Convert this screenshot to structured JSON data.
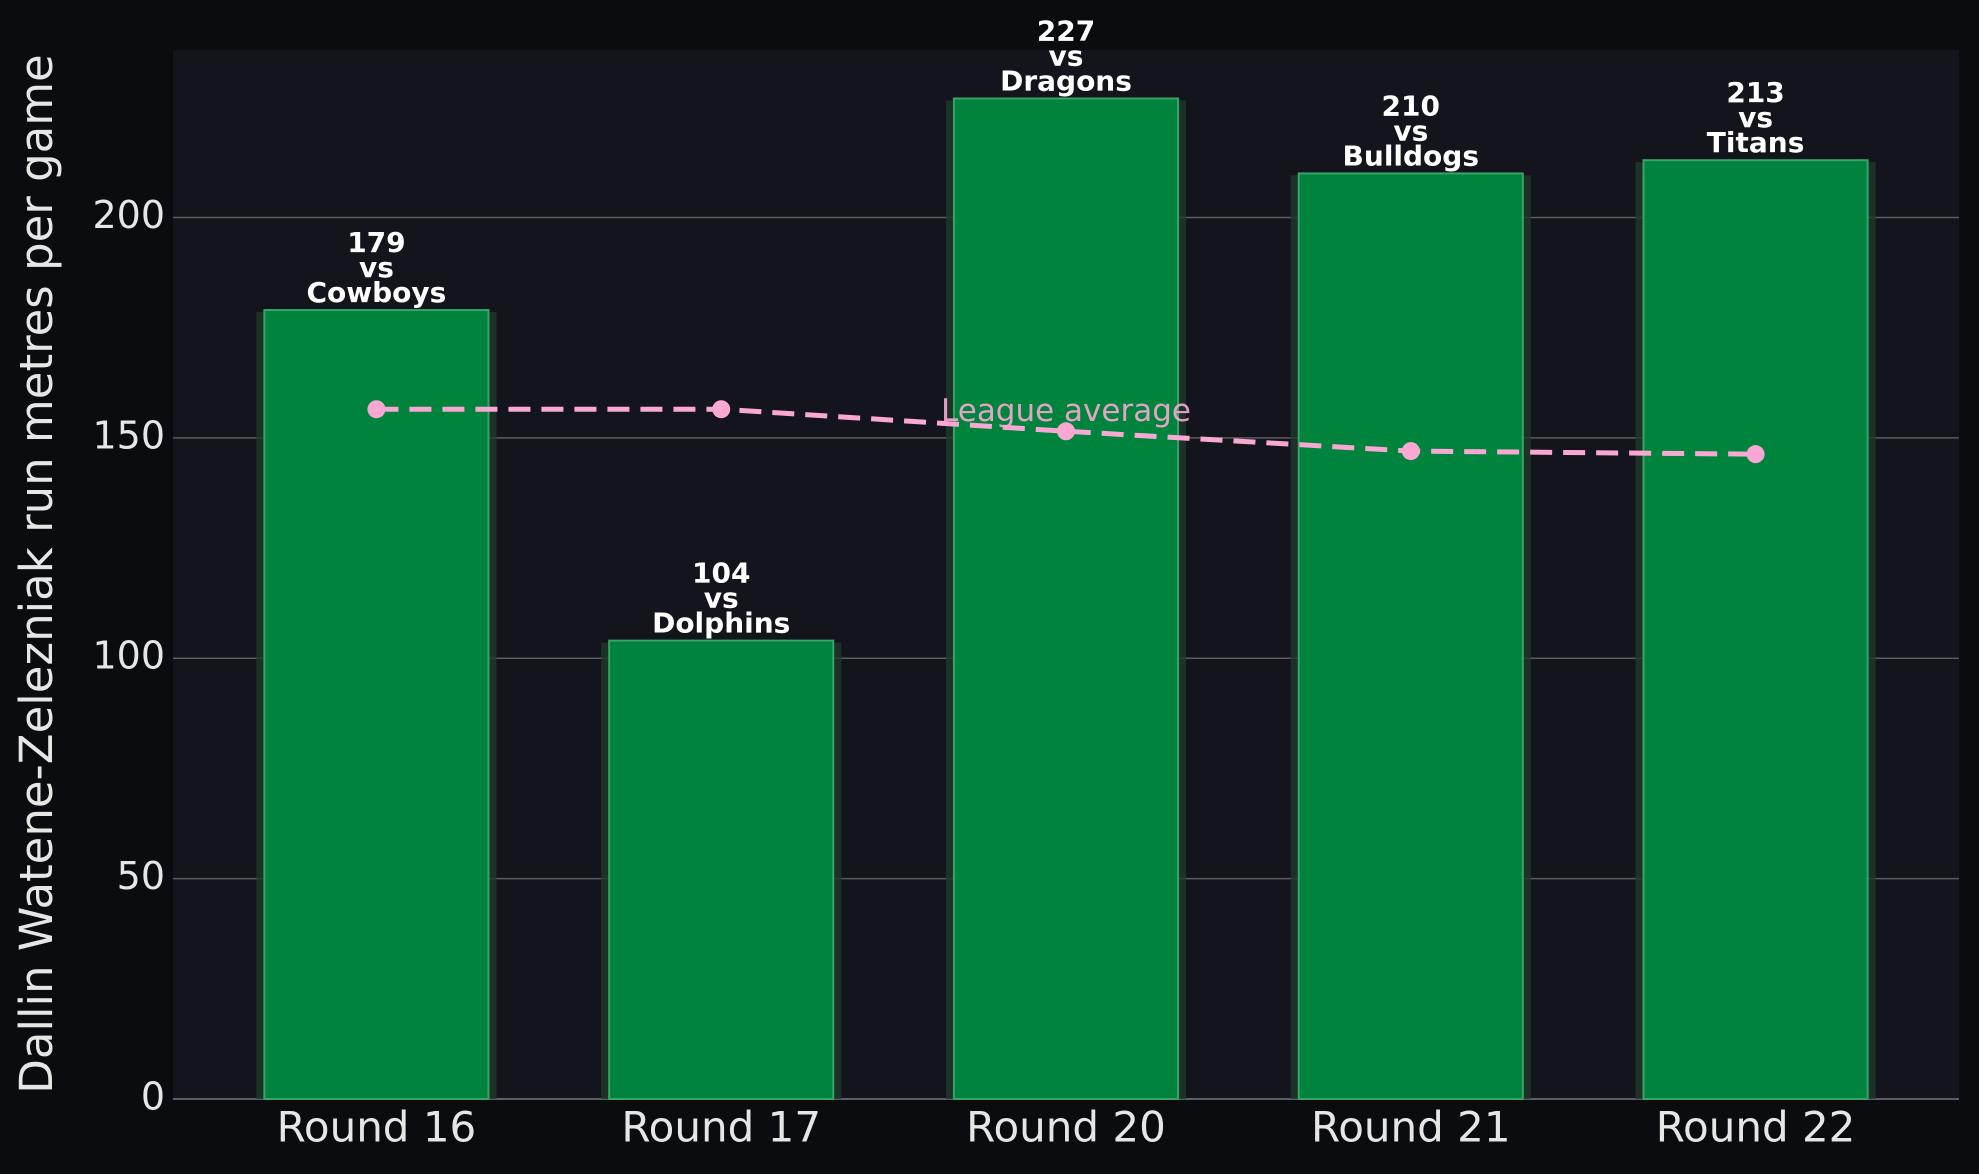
{
  "chart_data": {
    "type": "bar",
    "ylabel": "Dallin Watene-Zelezniak run metres per game",
    "categories": [
      "Round 16",
      "Round 17",
      "Round 20",
      "Round 21",
      "Round 22"
    ],
    "values": [
      179,
      104,
      227,
      210,
      213
    ],
    "connector": "vs",
    "opponents": [
      "Cowboys",
      "Dolphins",
      "Dragons",
      "Bulldogs",
      "Titans"
    ],
    "color": "#00843d",
    "average": {
      "label": "League average",
      "values": [
        156.5,
        156.5,
        151.5,
        147,
        146.3
      ],
      "color": "#f9a8d4"
    },
    "ylim": [
      0,
      238
    ],
    "yticks": [
      0,
      50,
      100,
      150,
      200
    ],
    "grid": true
  }
}
